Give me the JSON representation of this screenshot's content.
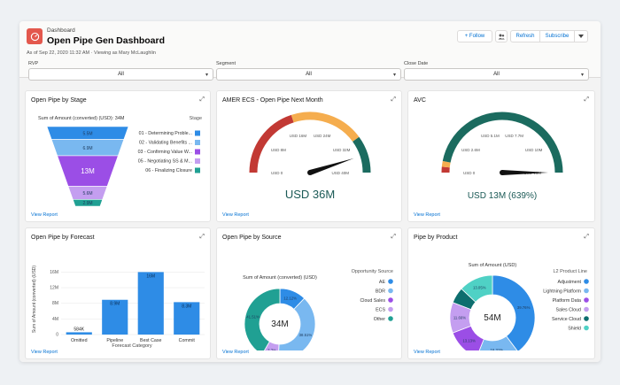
{
  "header": {
    "breadcrumb": "Dashboard",
    "title": "Open Pipe Gen Dashboard",
    "as_of": "As of Sep 22, 2020 11:32 AM · Viewing as Mary McLaughlin",
    "follow_label": "+ Follow",
    "refresh_label": "Refresh",
    "subscribe_label": "Subscribe",
    "dropdown_icon": "chevron-down-icon",
    "share_icon": "people-icon"
  },
  "filters": [
    {
      "label": "RVP",
      "value": "All"
    },
    {
      "label": "Segment",
      "value": "All"
    },
    {
      "label": "Close Date",
      "value": "All"
    }
  ],
  "colors": {
    "blue": "#2e8ce6",
    "lightblue": "#79b8f0",
    "purple": "#9b4ee6",
    "lavender": "#c49ef0",
    "teal": "#20a093",
    "darkteal": "#0d6e6e",
    "red": "#c23934",
    "orange": "#f5ad4e",
    "darkgreen": "#1b6b5f"
  },
  "cards": {
    "funnel": {
      "title": "Open Pipe by Stage",
      "subtitle": "Sum of Amount (converted) (USD): 34M",
      "legend_title": "Stage",
      "view_report": "View Report",
      "chart_data": {
        "type": "funnel",
        "categories": [
          "01 - Determining Proble...",
          "02 - Validating Benefits ...",
          "03 - Confirming Value W...",
          "05 - Negotiating SS & M...",
          "06 - Finalizing Closure"
        ],
        "values_label": [
          "5.5M",
          "6.9M",
          "13M",
          "5.6M",
          "2.9M"
        ],
        "values": [
          5.5,
          6.9,
          13,
          5.6,
          2.9
        ],
        "colors": [
          "#2e8ce6",
          "#79b8f0",
          "#9b4ee6",
          "#c49ef0",
          "#20a093"
        ]
      }
    },
    "gauge1": {
      "title": "AMER ECS - Open Pipe Next Month",
      "value_label": "USD 36M",
      "view_report": "View Report",
      "ticks": [
        "USD 0",
        "USD 8M",
        "USD 16M",
        "USD 24M",
        "USD 32M",
        "USD 40M"
      ],
      "chart_data": {
        "type": "gauge",
        "min": 0,
        "max": 40,
        "value": 36,
        "bands": [
          {
            "to": 16,
            "color": "#c23934"
          },
          {
            "to": 32,
            "color": "#f5ad4e"
          },
          {
            "to": 40,
            "color": "#1b6b5f"
          }
        ]
      }
    },
    "gauge2": {
      "title": "AVC",
      "value_label": "USD 13M (639%)",
      "view_report": "View Report",
      "ticks": [
        "USD 0",
        "USD 2.6M",
        "USD 5.1M",
        "USD 7.7M",
        "USD 10M",
        "USD 13M"
      ],
      "chart_data": {
        "type": "gauge",
        "min": 0,
        "max": 13,
        "value": 13,
        "bands": [
          {
            "to": 0.4,
            "color": "#c23934"
          },
          {
            "to": 0.8,
            "color": "#f5ad4e"
          },
          {
            "to": 13,
            "color": "#1b6b5f"
          }
        ]
      }
    },
    "forecast": {
      "title": "Open Pipe by Forecast",
      "view_report": "View Report",
      "chart_data": {
        "type": "bar",
        "categories": [
          "Omitted",
          "Pipeline",
          "Best Case",
          "Commit"
        ],
        "values": [
          0.584,
          8.9,
          16,
          8.3
        ],
        "labels": [
          "584K",
          "8.9M",
          "16M",
          "8.3M"
        ],
        "xlabel": "Forecast Category",
        "ylabel": "Sum of Amount (converted) (USD)",
        "yticks": [
          "0",
          "4M",
          "8M",
          "12M",
          "16M"
        ],
        "ylim": [
          0,
          17
        ],
        "color": "#2e8ce6"
      }
    },
    "source": {
      "title": "Open Pipe by Source",
      "subtitle": "Sum of Amount (converted) (USD)",
      "center_label": "34M",
      "legend_title": "Opportunity Source",
      "view_report": "View Report",
      "chart_data": {
        "type": "donut",
        "categories": [
          "AE",
          "BDR",
          "Cloud Sales",
          "ECS",
          "Other"
        ],
        "values": [
          12.12,
          38.51,
          0,
          7.7,
          41.51
        ],
        "labels": [
          "12.12%",
          "38.51%",
          "",
          "7.7%",
          "41.51%"
        ],
        "colors": [
          "#2e8ce6",
          "#79b8f0",
          "#9b4ee6",
          "#c49ef0",
          "#20a093"
        ]
      }
    },
    "product": {
      "title": "Pipe by Product",
      "subtitle": "Sum of Amount (USD)",
      "center_label": "54M",
      "legend_title": "L2 Product Line",
      "view_report": "View Report",
      "chart_data": {
        "type": "donut",
        "categories": [
          "Adjustment",
          "Lightning Platform",
          "Platform Data",
          "Sales Cloud",
          "Service Cloud",
          "Shield"
        ],
        "values": [
          39.76,
          16.31,
          13.13,
          11.66,
          6.09,
          13.05
        ],
        "labels": [
          "39.76%",
          "16.31%",
          "13.13%",
          "11.66%",
          "",
          "13.05%"
        ],
        "colors": [
          "#2e8ce6",
          "#79b8f0",
          "#9b4ee6",
          "#c49ef0",
          "#0d6e6e",
          "#4fd1c5"
        ]
      }
    }
  }
}
